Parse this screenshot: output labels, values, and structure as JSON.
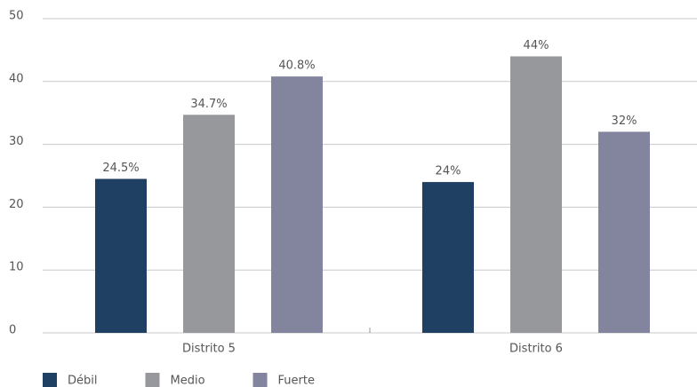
{
  "chart_data": {
    "type": "bar",
    "categories": [
      "Distrito 5",
      "Distrito 6"
    ],
    "series": [
      {
        "name": "Débil",
        "color": "#1f3f63",
        "values": [
          24.5,
          24
        ],
        "value_labels": [
          "24.5%",
          "24%"
        ]
      },
      {
        "name": "Medio",
        "color": "#97989b",
        "values": [
          34.7,
          44
        ],
        "value_labels": [
          "34.7%",
          "44%"
        ]
      },
      {
        "name": "Fuerte",
        "color": "#83849e",
        "values": [
          40.8,
          32
        ],
        "value_labels": [
          "40.8%",
          "32%"
        ]
      }
    ],
    "ylim": [
      0,
      50
    ],
    "yticks": [
      0,
      10,
      20,
      30,
      40,
      50
    ],
    "grid": true,
    "legend": "bottom-left"
  }
}
